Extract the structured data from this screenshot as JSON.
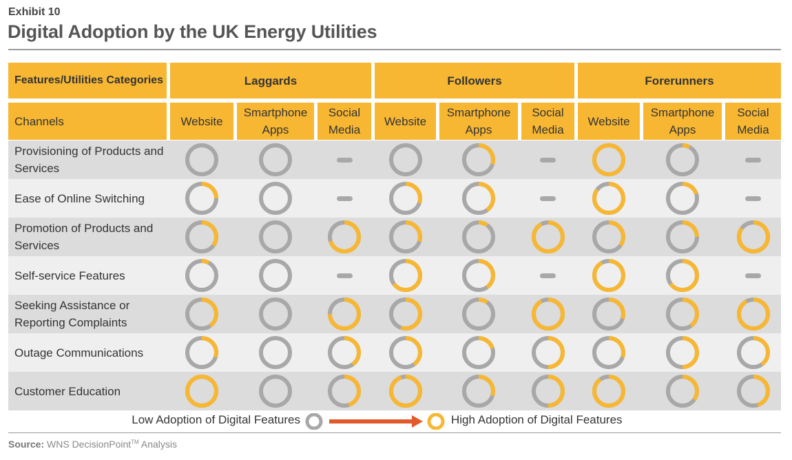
{
  "exhibit": "Exhibit 10",
  "title": "Digital Adoption by the UK Energy Utilities",
  "colors": {
    "header": "#f7b733",
    "ring_gray": "#a8a8a8",
    "ring_yellow": "#f7b733",
    "arrow": "#e05a2b",
    "row_dark": "#dcdcdc",
    "row_light": "#efefef"
  },
  "corner_label": "Features/Utilities Categories",
  "channels_label": "Channels",
  "groups": [
    "Laggards",
    "Followers",
    "Forerunners"
  ],
  "channels": [
    "Website",
    "Smartphone Apps",
    "Social Media"
  ],
  "legend": {
    "low": "Low Adoption of Digital Features",
    "high": "High Adoption of Digital Features"
  },
  "source": {
    "label": "Source:",
    "text": "WNS DecisionPoint",
    "tm": "TM",
    "suffix": "Analysis"
  },
  "chart_data": {
    "type": "table",
    "value_meaning": "share of ring filled yellow (0 = low adoption, 1 = high adoption); null = not applicable (dash)",
    "columns": [
      "Laggards / Website",
      "Laggards / Smartphone Apps",
      "Laggards / Social Media",
      "Followers / Website",
      "Followers / Smartphone Apps",
      "Followers / Social Media",
      "Forerunners / Website",
      "Forerunners / Smartphone Apps",
      "Forerunners / Social Media"
    ],
    "rows": [
      {
        "feature": "Provisioning of Products and Services",
        "values": [
          0,
          0,
          null,
          0,
          0.3,
          null,
          1,
          0.08,
          null
        ]
      },
      {
        "feature": "Ease of Online Switching",
        "values": [
          0.25,
          0,
          null,
          0.3,
          0.4,
          null,
          0.85,
          0.2,
          null
        ]
      },
      {
        "feature": "Promotion of Products and Services",
        "values": [
          0.35,
          0,
          0.7,
          0.3,
          0.1,
          0.92,
          0.35,
          0.25,
          0.85
        ]
      },
      {
        "feature": "Self-service Features",
        "values": [
          0.08,
          0,
          null,
          0.65,
          0.4,
          null,
          0.92,
          0.65,
          null
        ]
      },
      {
        "feature": "Seeking Assistance or Reporting Complaints",
        "values": [
          0.4,
          0,
          0.75,
          0.55,
          0.1,
          0.92,
          0.3,
          0.4,
          0.92
        ]
      },
      {
        "feature": "Outage Communications",
        "values": [
          0.3,
          0,
          0.4,
          0.4,
          0.2,
          0.5,
          0.3,
          0.5,
          0.4
        ]
      },
      {
        "feature": "Customer Education",
        "values": [
          1,
          0,
          0.45,
          0.95,
          0.3,
          0.5,
          0.9,
          0.35,
          0.45
        ]
      }
    ]
  }
}
